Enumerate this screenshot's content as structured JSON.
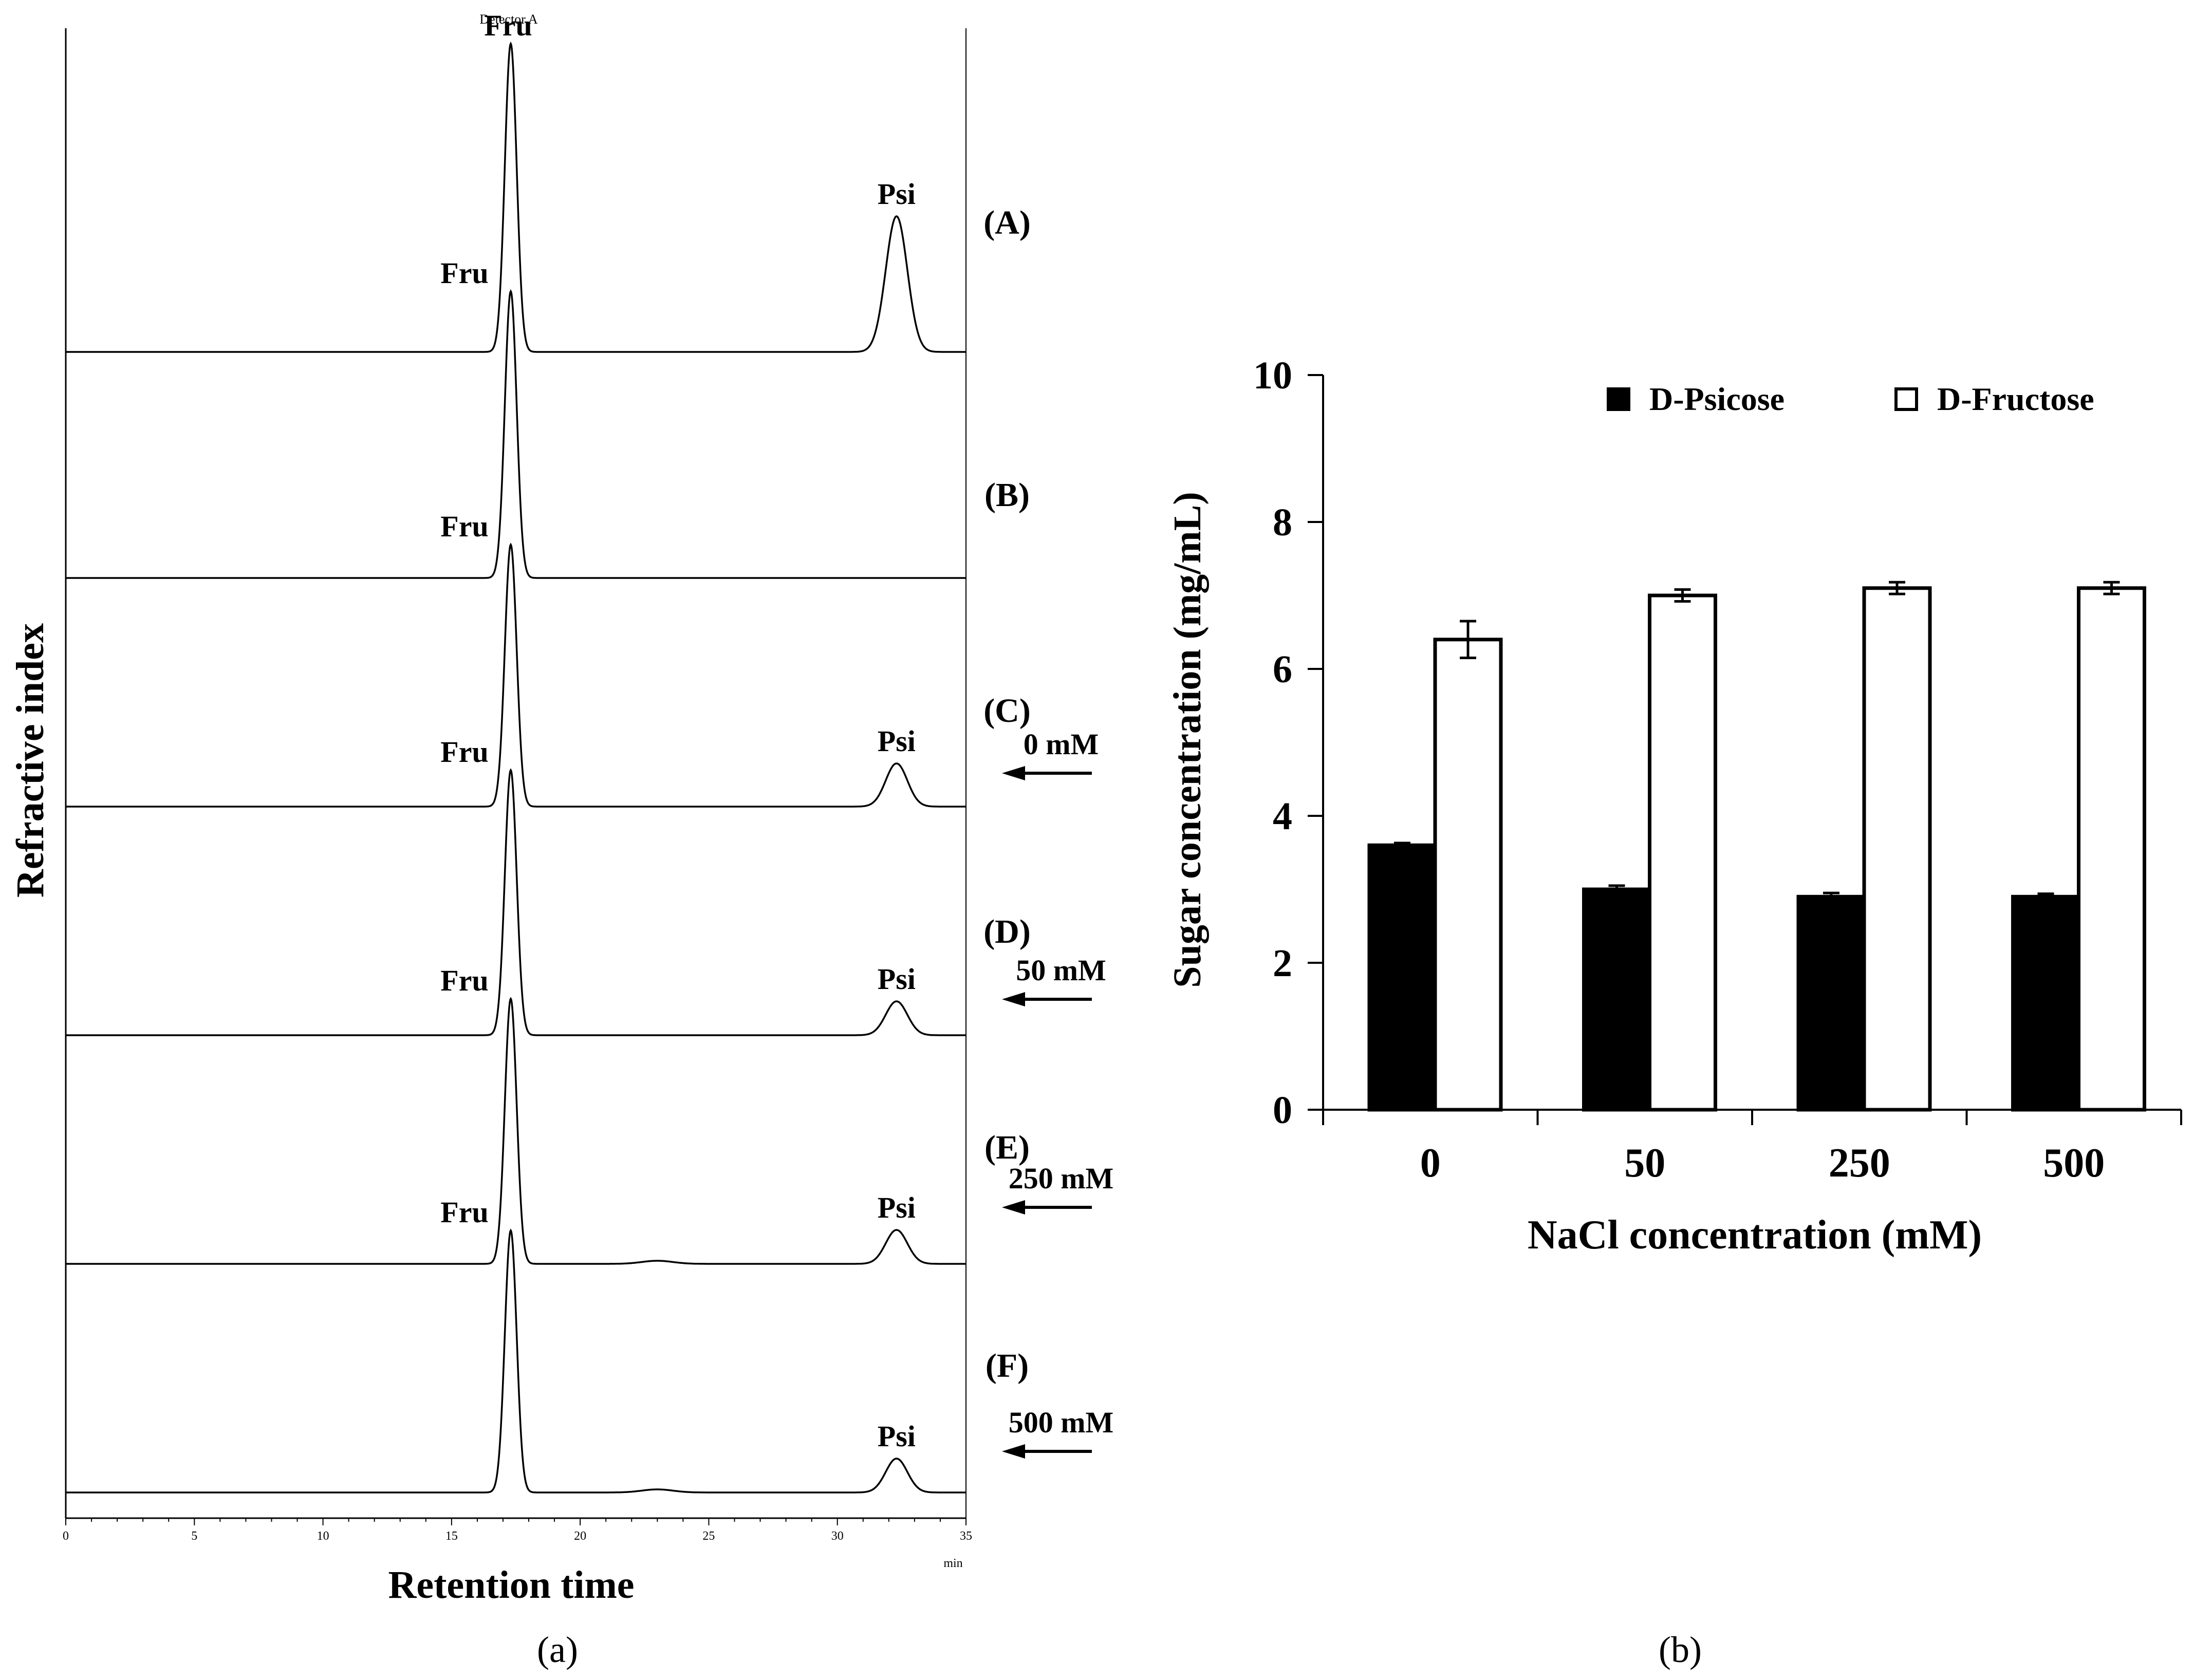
{
  "chart_data": [
    {
      "type": "line",
      "panel_label": "(a)",
      "title": "Detector A",
      "xlabel": "Retention time",
      "ylabel": "Refractive index",
      "x_unit": "min",
      "xlim": [
        0,
        35
      ],
      "x_ticks": [
        "0",
        "5",
        "10",
        "15",
        "20",
        "25",
        "30",
        "35"
      ],
      "traces": [
        {
          "label": "(A)",
          "fru_height": 1.0,
          "psi_height": 0.44,
          "peak_labels": [
            "Fru",
            "Psi"
          ],
          "condition": ""
        },
        {
          "label": "(B)",
          "fru_height": 0.93,
          "psi_height": 0.0,
          "peak_labels": [
            "Fru"
          ],
          "condition": ""
        },
        {
          "label": "(C)",
          "fru_height": 0.85,
          "psi_height": 0.14,
          "peak_labels": [
            "Fru",
            "Psi"
          ],
          "condition": "0 mM"
        },
        {
          "label": "(D)",
          "fru_height": 0.86,
          "psi_height": 0.11,
          "peak_labels": [
            "Fru",
            "Psi"
          ],
          "condition": "50 mM"
        },
        {
          "label": "(E)",
          "fru_height": 0.86,
          "psi_height": 0.11,
          "peak_labels": [
            "Fru",
            "Psi"
          ],
          "condition": "250 mM"
        },
        {
          "label": "(F)",
          "fru_height": 0.85,
          "psi_height": 0.11,
          "peak_labels": [
            "Fru",
            "Psi"
          ],
          "condition": "500 mM"
        }
      ],
      "fru_retention": 17.3,
      "psi_retention": 32.3
    },
    {
      "type": "bar",
      "panel_label": "(b)",
      "xlabel": "NaCl concentration  (mM)",
      "ylabel": "Sugar concentration  (mg/mL)",
      "ylim": [
        0,
        10
      ],
      "y_ticks": [
        "0",
        "2",
        "4",
        "6",
        "8",
        "10"
      ],
      "categories": [
        "0",
        "50",
        "250",
        "500"
      ],
      "series": [
        {
          "name": "D-Psicose",
          "fill": "#000000",
          "values": [
            3.6,
            3.0,
            2.9,
            2.9
          ],
          "errors": [
            0.03,
            0.05,
            0.05,
            0.04
          ]
        },
        {
          "name": "D-Fructose",
          "fill": "#ffffff",
          "values": [
            6.4,
            7.0,
            7.1,
            7.1
          ],
          "errors": [
            0.25,
            0.08,
            0.08,
            0.08
          ]
        }
      ]
    }
  ]
}
